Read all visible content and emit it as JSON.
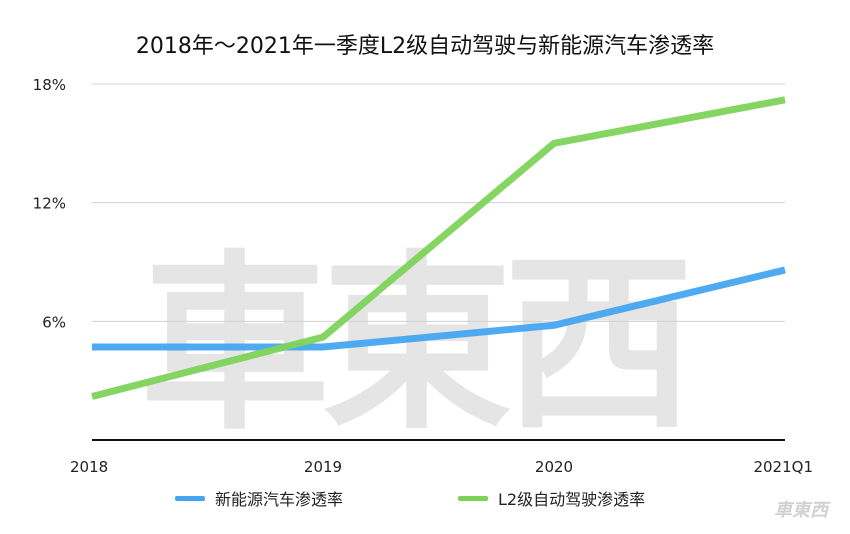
{
  "watermark": "車東西",
  "chart_data": {
    "type": "line",
    "title": "2018年～2021年一季度L2级自动驾驶与新能源汽车渗透率",
    "categories": [
      "2018",
      "2019",
      "2020",
      "2021Q1"
    ],
    "series": [
      {
        "name": "新能源汽车渗透率",
        "color": "#45a6f0",
        "values": [
          4.7,
          4.7,
          5.8,
          8.6
        ]
      },
      {
        "name": "L2级自动驾驶渗透率",
        "color": "#7dd35a",
        "values": [
          2.2,
          5.2,
          15.0,
          17.2
        ]
      }
    ],
    "yticks": [
      {
        "value": 6,
        "label": "6%"
      },
      {
        "value": 12,
        "label": "12%"
      },
      {
        "value": 18,
        "label": "18%"
      }
    ],
    "ylim": [
      0,
      18
    ],
    "xlabel": "",
    "ylabel": "",
    "grid": true,
    "legend": "bottom"
  }
}
